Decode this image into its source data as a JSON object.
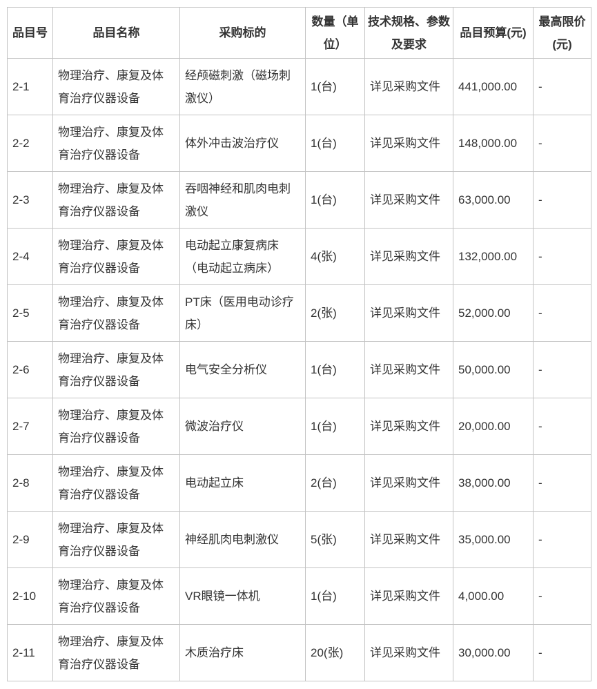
{
  "colors": {
    "background": "#ffffff",
    "border": "#c3c3c3",
    "header_text": "#333333",
    "body_text": "#333333"
  },
  "table": {
    "columns": [
      {
        "label": "品目号"
      },
      {
        "label": "品目名称"
      },
      {
        "label": "采购标的"
      },
      {
        "label": "数量（单位）"
      },
      {
        "label": "技术规格、参数及要求"
      },
      {
        "label": "品目预算(元)"
      },
      {
        "label": "最高限价(元)"
      }
    ],
    "rows": [
      {
        "item_no": "2-1",
        "item_name": "物理治疗、康复及体育治疗仪器设备",
        "subject": "经颅磁刺激（磁场刺激仪）",
        "quantity": "1(台)",
        "spec": "详见采购文件",
        "budget": "441,000.00",
        "max_price": "-"
      },
      {
        "item_no": "2-2",
        "item_name": "物理治疗、康复及体育治疗仪器设备",
        "subject": "体外冲击波治疗仪",
        "quantity": "1(台)",
        "spec": "详见采购文件",
        "budget": "148,000.00",
        "max_price": "-"
      },
      {
        "item_no": "2-3",
        "item_name": "物理治疗、康复及体育治疗仪器设备",
        "subject": "吞咽神经和肌肉电刺激仪",
        "quantity": "1(台)",
        "spec": "详见采购文件",
        "budget": "63,000.00",
        "max_price": "-"
      },
      {
        "item_no": "2-4",
        "item_name": "物理治疗、康复及体育治疗仪器设备",
        "subject": "电动起立康复病床（电动起立病床）",
        "quantity": "4(张)",
        "spec": "详见采购文件",
        "budget": "132,000.00",
        "max_price": "-"
      },
      {
        "item_no": "2-5",
        "item_name": "物理治疗、康复及体育治疗仪器设备",
        "subject": "PT床（医用电动诊疗床）",
        "quantity": "2(张)",
        "spec": "详见采购文件",
        "budget": "52,000.00",
        "max_price": "-"
      },
      {
        "item_no": "2-6",
        "item_name": "物理治疗、康复及体育治疗仪器设备",
        "subject": "电气安全分析仪",
        "quantity": "1(台)",
        "spec": "详见采购文件",
        "budget": "50,000.00",
        "max_price": "-"
      },
      {
        "item_no": "2-7",
        "item_name": "物理治疗、康复及体育治疗仪器设备",
        "subject": "微波治疗仪",
        "quantity": "1(台)",
        "spec": "详见采购文件",
        "budget": "20,000.00",
        "max_price": "-"
      },
      {
        "item_no": "2-8",
        "item_name": "物理治疗、康复及体育治疗仪器设备",
        "subject": "电动起立床",
        "quantity": "2(台)",
        "spec": "详见采购文件",
        "budget": "38,000.00",
        "max_price": "-"
      },
      {
        "item_no": "2-9",
        "item_name": "物理治疗、康复及体育治疗仪器设备",
        "subject": "神经肌肉电刺激仪",
        "quantity": "5(张)",
        "spec": "详见采购文件",
        "budget": "35,000.00",
        "max_price": "-"
      },
      {
        "item_no": "2-10",
        "item_name": "物理治疗、康复及体育治疗仪器设备",
        "subject": "VR眼镜一体机",
        "quantity": "1(台)",
        "spec": "详见采购文件",
        "budget": "4,000.00",
        "max_price": "-"
      },
      {
        "item_no": "2-11",
        "item_name": "物理治疗、康复及体育治疗仪器设备",
        "subject": "木质治疗床",
        "quantity": "20(张)",
        "spec": "详见采购文件",
        "budget": "30,000.00",
        "max_price": "-"
      }
    ]
  }
}
